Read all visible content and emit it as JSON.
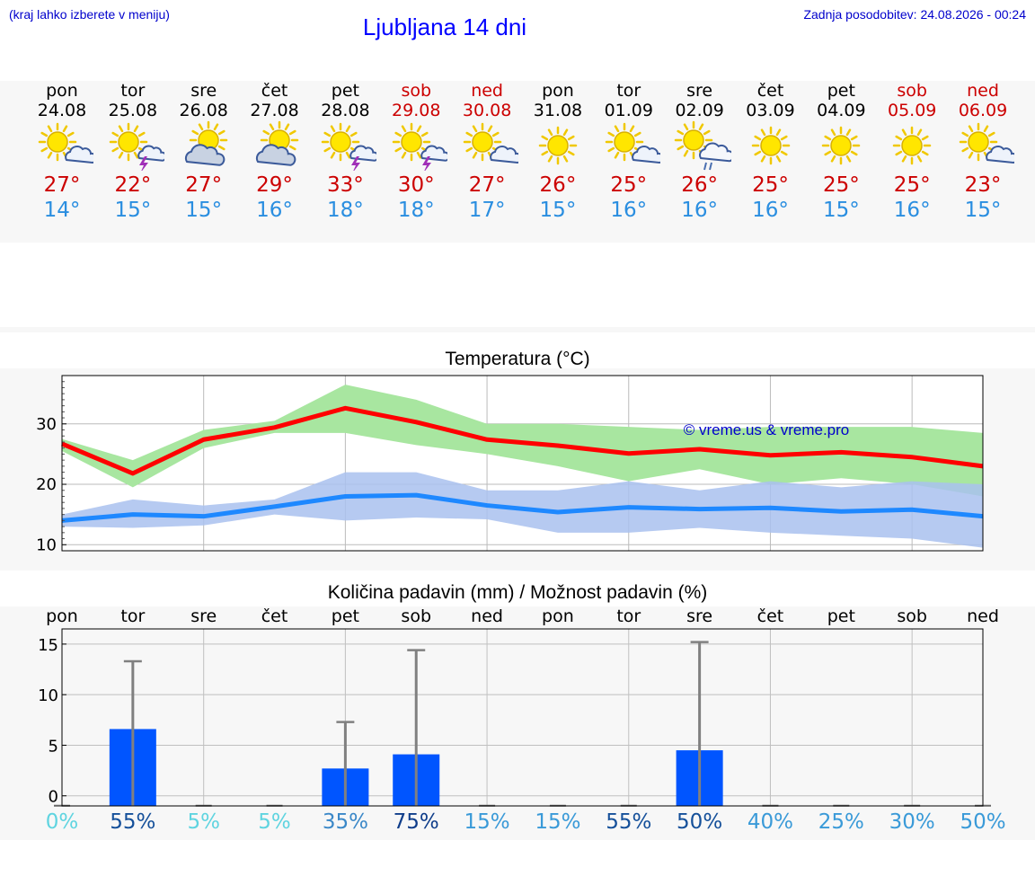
{
  "header": {
    "hint": "(kraj lahko izberete v meniju)",
    "title": "Ljubljana 14 dni",
    "updated": "Zadnja posodobitev: 24.08.2026 - 00:24"
  },
  "days": [
    {
      "name": "pon",
      "date": "24.08",
      "weekend": false,
      "icon": "sun-cloud-icon",
      "max": "27°",
      "min": "14°"
    },
    {
      "name": "tor",
      "date": "25.08",
      "weekend": false,
      "icon": "sun-thunder-icon",
      "max": "22°",
      "min": "15°"
    },
    {
      "name": "sre",
      "date": "26.08",
      "weekend": false,
      "icon": "cloud-sun-icon",
      "max": "27°",
      "min": "15°"
    },
    {
      "name": "čet",
      "date": "27.08",
      "weekend": false,
      "icon": "cloud-sun-icon",
      "max": "29°",
      "min": "16°"
    },
    {
      "name": "pet",
      "date": "28.08",
      "weekend": false,
      "icon": "sun-thunder-icon",
      "max": "33°",
      "min": "18°"
    },
    {
      "name": "sob",
      "date": "29.08",
      "weekend": true,
      "icon": "sun-thunder-icon",
      "max": "30°",
      "min": "18°"
    },
    {
      "name": "ned",
      "date": "30.08",
      "weekend": true,
      "icon": "sun-cloud-icon",
      "max": "27°",
      "min": "17°"
    },
    {
      "name": "pon",
      "date": "31.08",
      "weekend": false,
      "icon": "sun-icon",
      "max": "26°",
      "min": "15°"
    },
    {
      "name": "tor",
      "date": "01.09",
      "weekend": false,
      "icon": "sun-cloud-icon",
      "max": "25°",
      "min": "16°"
    },
    {
      "name": "sre",
      "date": "02.09",
      "weekend": false,
      "icon": "sun-rain-icon",
      "max": "26°",
      "min": "16°"
    },
    {
      "name": "čet",
      "date": "03.09",
      "weekend": false,
      "icon": "sun-icon",
      "max": "25°",
      "min": "16°"
    },
    {
      "name": "pet",
      "date": "04.09",
      "weekend": false,
      "icon": "sun-icon",
      "max": "25°",
      "min": "15°"
    },
    {
      "name": "sob",
      "date": "05.09",
      "weekend": true,
      "icon": "sun-icon",
      "max": "25°",
      "min": "16°"
    },
    {
      "name": "ned",
      "date": "06.09",
      "weekend": true,
      "icon": "sun-cloud-icon",
      "max": "23°",
      "min": "15°"
    }
  ],
  "chart_data": [
    {
      "type": "line",
      "title": "Temperatura (°C)",
      "watermark": "© vreme.us & vreme.pro",
      "x": [
        0,
        1,
        2,
        3,
        4,
        5,
        6,
        7,
        8,
        9,
        10,
        11,
        12,
        13
      ],
      "ylim": [
        9,
        38
      ],
      "yticks": [
        10,
        20,
        30
      ],
      "grid": true,
      "series": [
        {
          "values": [
            26.7,
            21.8,
            27.4,
            29.4,
            32.6,
            30.3,
            27.4,
            26.4,
            25.1,
            25.8,
            24.8,
            25.3,
            24.5,
            23.0
          ],
          "color": "#ff0000"
        },
        {
          "values": [
            14.0,
            15.0,
            14.7,
            16.3,
            18.0,
            18.2,
            16.5,
            15.4,
            16.2,
            15.9,
            16.1,
            15.5,
            15.8,
            14.7
          ],
          "color": "#1e88ff"
        }
      ],
      "bands": [
        {
          "upper": [
            27.5,
            24.0,
            29.0,
            30.5,
            36.5,
            34.0,
            30.0,
            30.0,
            29.5,
            29.0,
            29.5,
            29.5,
            29.5,
            28.5
          ],
          "lower": [
            25.5,
            19.5,
            26.0,
            28.5,
            28.5,
            26.5,
            25.0,
            23.0,
            20.5,
            22.5,
            20.0,
            21.0,
            20.0,
            18.0
          ],
          "color": "#a8e6a0"
        },
        {
          "upper": [
            15.0,
            17.5,
            16.5,
            17.5,
            22.0,
            22.0,
            19.0,
            19.0,
            20.5,
            19.0,
            20.5,
            19.5,
            20.5,
            20.0
          ],
          "lower": [
            13.0,
            12.8,
            13.2,
            15.0,
            14.0,
            14.5,
            14.2,
            12.0,
            12.0,
            12.8,
            12.0,
            11.5,
            11.0,
            9.5
          ],
          "color": "#a9c1ef"
        }
      ]
    },
    {
      "type": "bar",
      "title": "Količina padavin (mm) / Možnost padavin (%)",
      "categories": [
        "pon",
        "tor",
        "sre",
        "čet",
        "pet",
        "sob",
        "ned",
        "pon",
        "tor",
        "sre",
        "čet",
        "pet",
        "sob",
        "ned"
      ],
      "values": [
        0,
        6.6,
        0,
        0,
        2.7,
        4.1,
        0,
        0,
        0,
        4.5,
        0,
        0,
        0,
        0
      ],
      "error_upper": [
        0,
        13.3,
        0,
        0,
        7.3,
        14.4,
        0,
        0,
        0,
        15.2,
        0,
        0,
        0,
        0
      ],
      "ylim": [
        -1,
        16.5
      ],
      "yticks": [
        0,
        5,
        10,
        15
      ],
      "grid": true,
      "probability_labels": [
        "0%",
        "55%",
        "5%",
        "5%",
        "35%",
        "75%",
        "15%",
        "15%",
        "55%",
        "50%",
        "40%",
        "25%",
        "30%",
        "50%"
      ],
      "probability_colors": [
        "#5fd4e0",
        "#15509a",
        "#5fd4e0",
        "#5fd4e0",
        "#3b88c8",
        "#0f3d8a",
        "#3a9ad8",
        "#3a9ad8",
        "#15509a",
        "#15509a",
        "#3a9ad8",
        "#3a9ad8",
        "#3a9ad8",
        "#3a9ad8"
      ],
      "bar_color": "#0055ff",
      "error_color": "#808080"
    }
  ]
}
